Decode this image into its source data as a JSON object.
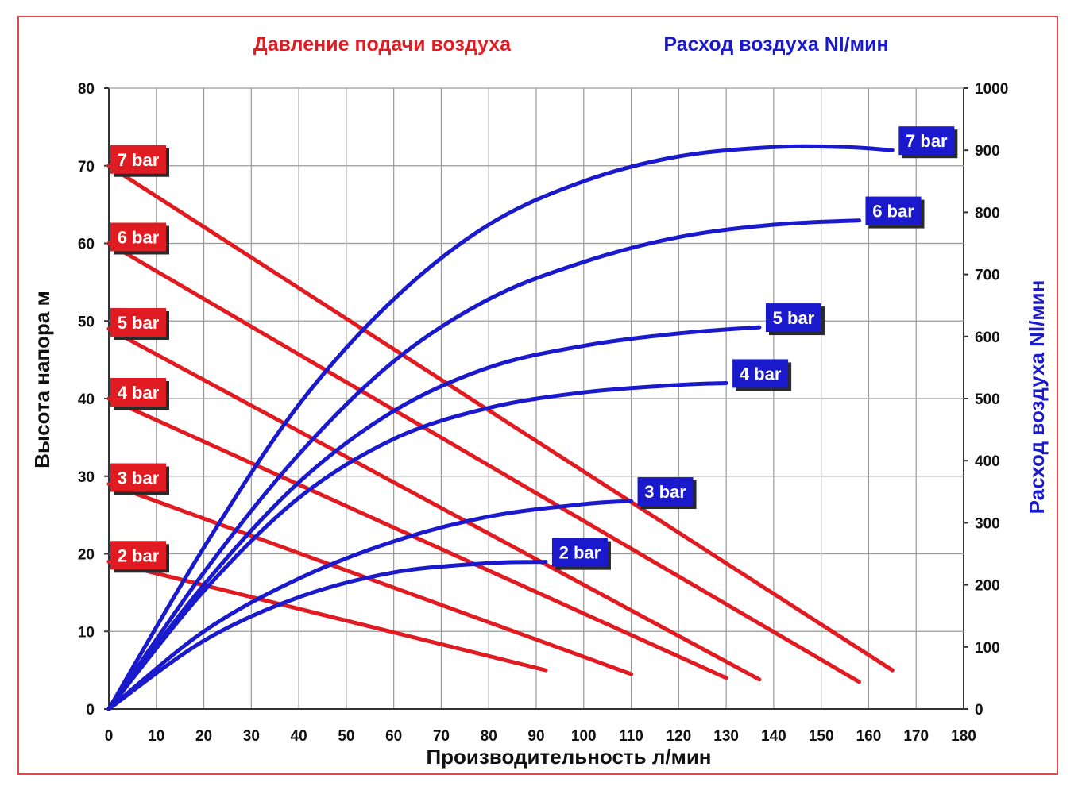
{
  "chart_data": {
    "type": "line",
    "headers": {
      "left": "Давление подачи воздуха",
      "right": "Расход воздуха Nl/мин"
    },
    "xlabel": "Производительность л/мин",
    "ylabel_left": "Высота напора м",
    "ylabel_right": "Расход воздуха Nl/мин",
    "xlim": [
      0,
      180
    ],
    "ylim_left": [
      0,
      80
    ],
    "ylim_right": [
      0,
      1000
    ],
    "x_ticks": [
      "0",
      "10",
      "20",
      "30",
      "40",
      "50",
      "60",
      "70",
      "80",
      "90",
      "100",
      "110",
      "120",
      "130",
      "140",
      "150",
      "160",
      "170",
      "180"
    ],
    "y_left_ticks": [
      "0",
      "10",
      "20",
      "30",
      "40",
      "50",
      "60",
      "70",
      "80"
    ],
    "y_right_ticks": [
      "0",
      "100",
      "200",
      "300",
      "400",
      "500",
      "600",
      "700",
      "800",
      "900",
      "1000"
    ],
    "grid": true,
    "colors": {
      "pressure": "#e01b22",
      "airflow": "#1a1acc",
      "frame": "#e0474c"
    },
    "pressure_series": [
      {
        "name": "7 bar",
        "x": [
          0,
          165
        ],
        "y": [
          70,
          5
        ]
      },
      {
        "name": "6 bar",
        "x": [
          0,
          158
        ],
        "y": [
          60,
          3.5
        ]
      },
      {
        "name": "5 bar",
        "x": [
          0,
          137
        ],
        "y": [
          49,
          3.8
        ]
      },
      {
        "name": "4 bar",
        "x": [
          0,
          130
        ],
        "y": [
          40,
          4
        ]
      },
      {
        "name": "3 bar",
        "x": [
          0,
          110
        ],
        "y": [
          29,
          4.5
        ]
      },
      {
        "name": "2 bar",
        "x": [
          0,
          92
        ],
        "y": [
          19,
          5
        ]
      }
    ],
    "airflow_series": [
      {
        "name": "7 bar",
        "x": [
          0,
          20,
          40,
          60,
          80,
          100,
          120,
          140,
          155,
          165
        ],
        "y": [
          0,
          260,
          490,
          660,
          780,
          850,
          890,
          905,
          905,
          900
        ]
      },
      {
        "name": "6 bar",
        "x": [
          0,
          20,
          40,
          60,
          80,
          100,
          120,
          140,
          158
        ],
        "y": [
          0,
          220,
          410,
          560,
          660,
          720,
          760,
          780,
          787
        ]
      },
      {
        "name": "5 bar",
        "x": [
          0,
          20,
          40,
          60,
          80,
          100,
          120,
          137
        ],
        "y": [
          0,
          200,
          365,
          480,
          550,
          585,
          605,
          615
        ]
      },
      {
        "name": "4 bar",
        "x": [
          0,
          20,
          40,
          60,
          80,
          100,
          120,
          130
        ],
        "y": [
          0,
          190,
          340,
          435,
          485,
          510,
          522,
          525
        ]
      },
      {
        "name": "3 bar",
        "x": [
          0,
          20,
          40,
          60,
          80,
          100,
          110
        ],
        "y": [
          0,
          125,
          210,
          270,
          310,
          330,
          335
        ]
      },
      {
        "name": "2 bar",
        "x": [
          0,
          20,
          40,
          60,
          80,
          92
        ],
        "y": [
          0,
          110,
          180,
          220,
          235,
          237
        ]
      }
    ]
  }
}
